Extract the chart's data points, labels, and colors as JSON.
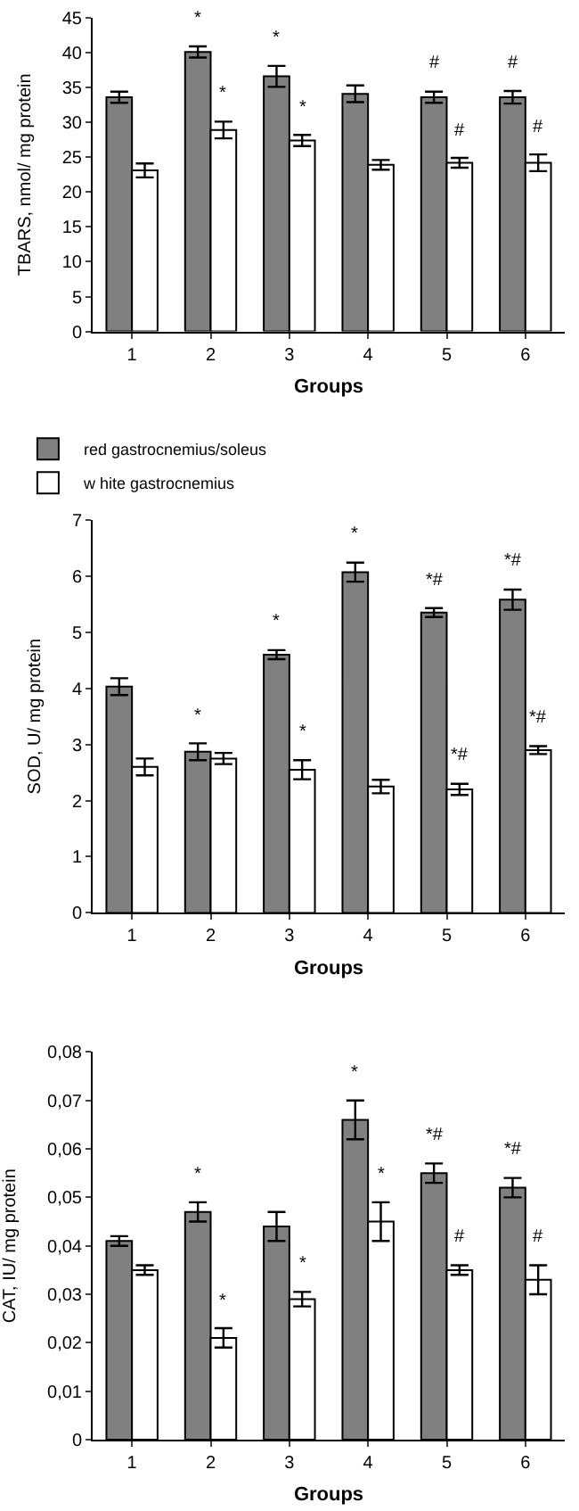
{
  "chart_data": [
    {
      "type": "bar",
      "ylabel": "TBARS, nmol/ mg protein",
      "xlabel": "Groups",
      "categories": [
        "1",
        "2",
        "3",
        "4",
        "5",
        "6"
      ],
      "series": [
        {
          "name": "red gastrocnemius/soleus",
          "color": "#808080",
          "values": [
            33.6,
            40.1,
            36.6,
            34.1,
            33.6,
            33.6
          ],
          "errors": [
            0.8,
            0.8,
            1.5,
            1.2,
            0.8,
            0.9
          ]
        },
        {
          "name": "w hite gastrocnemius",
          "color": "#ffffff",
          "values": [
            23.1,
            28.9,
            27.4,
            23.9,
            24.2,
            24.2
          ],
          "errors": [
            1.0,
            1.2,
            0.8,
            0.7,
            0.7,
            1.2
          ]
        }
      ],
      "ylim": [
        0,
        45
      ],
      "yticks": [
        0,
        5,
        10,
        15,
        20,
        25,
        30,
        35,
        40,
        45
      ],
      "legend": "bottom",
      "annotations": [
        {
          "text": "*",
          "x": "2",
          "y": 40.9
        },
        {
          "text": "*",
          "x": "2",
          "y": 30.1
        },
        {
          "text": "*",
          "x": "3",
          "y": 38.1
        },
        {
          "text": "*",
          "x": "3",
          "y": 28.2
        },
        {
          "text": "#",
          "x": "5",
          "y": 34.4
        },
        {
          "text": "#",
          "x": "5",
          "y": 24.9
        },
        {
          "text": "#",
          "x": "6",
          "y": 34.5
        },
        {
          "text": "#",
          "x": "6",
          "y": 25.4
        }
      ]
    },
    {
      "type": "bar",
      "ylabel": "SOD, U/ mg protein",
      "xlabel": "Groups",
      "categories": [
        "1",
        "2",
        "3",
        "4",
        "5",
        "6"
      ],
      "series": [
        {
          "color": "#808080",
          "values": [
            4.03,
            2.87,
            4.6,
            6.07,
            5.35,
            5.58
          ],
          "errors": [
            0.15,
            0.15,
            0.08,
            0.17,
            0.08,
            0.18
          ]
        },
        {
          "color": "#ffffff",
          "values": [
            2.6,
            2.75,
            2.55,
            2.25,
            2.2,
            2.9
          ],
          "errors": [
            0.15,
            0.1,
            0.17,
            0.12,
            0.1,
            0.07
          ]
        }
      ],
      "ylim": [
        0,
        7
      ],
      "yticks": [
        0,
        1,
        2,
        3,
        4,
        5,
        6,
        7
      ],
      "legend": false,
      "annotations": [
        {
          "text": "*",
          "x": "2",
          "y": 3.02
        },
        {
          "text": "*",
          "x": "3",
          "y": 4.68
        },
        {
          "text": "*",
          "x": "3",
          "y": 2.72
        },
        {
          "text": "*",
          "x": "4",
          "y": 6.24
        },
        {
          "text": "*#",
          "x": "5",
          "y": 5.43
        },
        {
          "text": "*#",
          "x": "5",
          "y": 2.3
        },
        {
          "text": "*#",
          "x": "6",
          "y": 5.76
        },
        {
          "text": "*#",
          "x": "6",
          "y": 2.97
        }
      ]
    },
    {
      "type": "bar",
      "ylabel": "CAT, IU/ mg protein",
      "xlabel": "Groups",
      "categories": [
        "1",
        "2",
        "3",
        "4",
        "5",
        "6"
      ],
      "series": [
        {
          "color": "#808080",
          "values": [
            0.041,
            0.047,
            0.044,
            0.066,
            0.055,
            0.052
          ],
          "errors": [
            0.001,
            0.002,
            0.003,
            0.004,
            0.002,
            0.002
          ]
        },
        {
          "color": "#ffffff",
          "values": [
            0.035,
            0.021,
            0.029,
            0.045,
            0.035,
            0.033
          ],
          "errors": [
            0.001,
            0.002,
            0.0015,
            0.004,
            0.001,
            0.003
          ]
        }
      ],
      "ylim": [
        0,
        0.08
      ],
      "yticks": [
        0,
        {
          "value": 0.01,
          "label": "0,01"
        },
        {
          "value": 0.02,
          "label": "0,02"
        },
        {
          "value": 0.03,
          "label": "0,03"
        },
        {
          "value": 0.04,
          "label": "0,04"
        },
        {
          "value": 0.05,
          "label": "0,05"
        },
        {
          "value": 0.06,
          "label": "0,06"
        },
        {
          "value": 0.07,
          "label": "0,07"
        },
        {
          "value": 0.08,
          "label": "0,08"
        }
      ],
      "legend": false,
      "annotations": [
        {
          "text": "*",
          "x": "2",
          "y": 0.049
        },
        {
          "text": "*",
          "x": "2",
          "y": 0.023
        },
        {
          "text": "*",
          "x": "3",
          "y": 0.0305
        },
        {
          "text": "*",
          "x": "4",
          "y": 0.07
        },
        {
          "text": "*",
          "x": "4",
          "y": 0.049
        },
        {
          "text": "*#",
          "x": "5",
          "y": 0.057
        },
        {
          "text": "#",
          "x": "5",
          "y": 0.036
        },
        {
          "text": "*#",
          "x": "6",
          "y": 0.054
        },
        {
          "text": "#",
          "x": "6",
          "y": 0.036
        }
      ]
    }
  ]
}
